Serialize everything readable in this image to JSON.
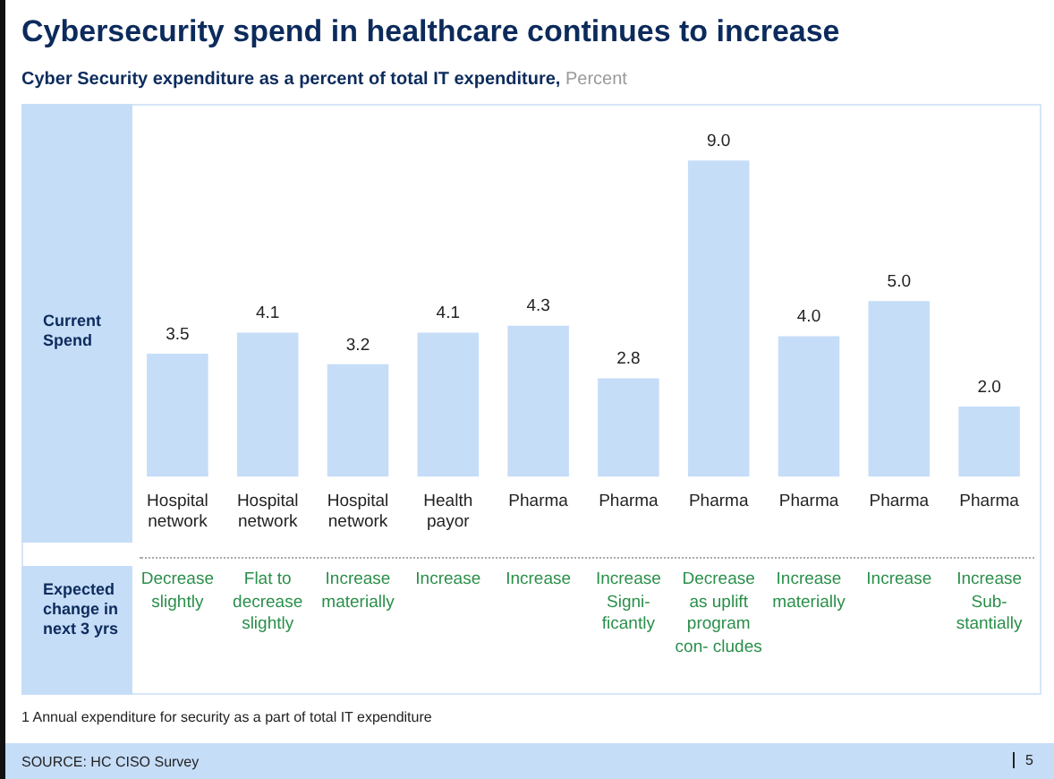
{
  "chart_data": {
    "type": "bar",
    "title": "Cybersecurity spend in healthcare continues to increase",
    "subtitle": "Cyber Security expenditure as a percent of total IT expenditure, Percent",
    "categories": [
      "Hospital network",
      "Hospital network",
      "Hospital network",
      "Health payor",
      "Pharma",
      "Pharma",
      "Pharma",
      "Pharma",
      "Pharma",
      "Pharma"
    ],
    "values": [
      3.5,
      4.1,
      3.2,
      4.1,
      4.3,
      2.8,
      9.0,
      4.0,
      5.0,
      2.0
    ],
    "value_labels": [
      "3.5",
      "4.1",
      "3.2",
      "4.1",
      "4.3",
      "2.8",
      "9.0",
      "4.0",
      "5.0",
      "2.0"
    ],
    "color": "#c6ddf8",
    "grid": false,
    "legend": false,
    "tick_labels": "x",
    "annotations": [
      {
        "text": "Current Spend"
      },
      {
        "text": "Expected change in next 3 yrs"
      },
      {
        "text": "Decrease slightly"
      },
      {
        "text": "Flat to decrease slightly"
      },
      {
        "text": "Increase materially"
      },
      {
        "text": "Increase"
      },
      {
        "text": "Increase"
      },
      {
        "text": "Increase Signi- ficantly"
      },
      {
        "text": "Decrease as uplift program con- cludes"
      },
      {
        "text": "Increase materially"
      },
      {
        "text": "Increase"
      },
      {
        "text": "Increase Sub- stantially"
      },
      {
        "text": "1 Annual expenditure for security as a part of total IT expenditure"
      },
      {
        "text": "SOURCE: HC CISO Survey"
      },
      {
        "text": "5"
      }
    ]
  }
}
